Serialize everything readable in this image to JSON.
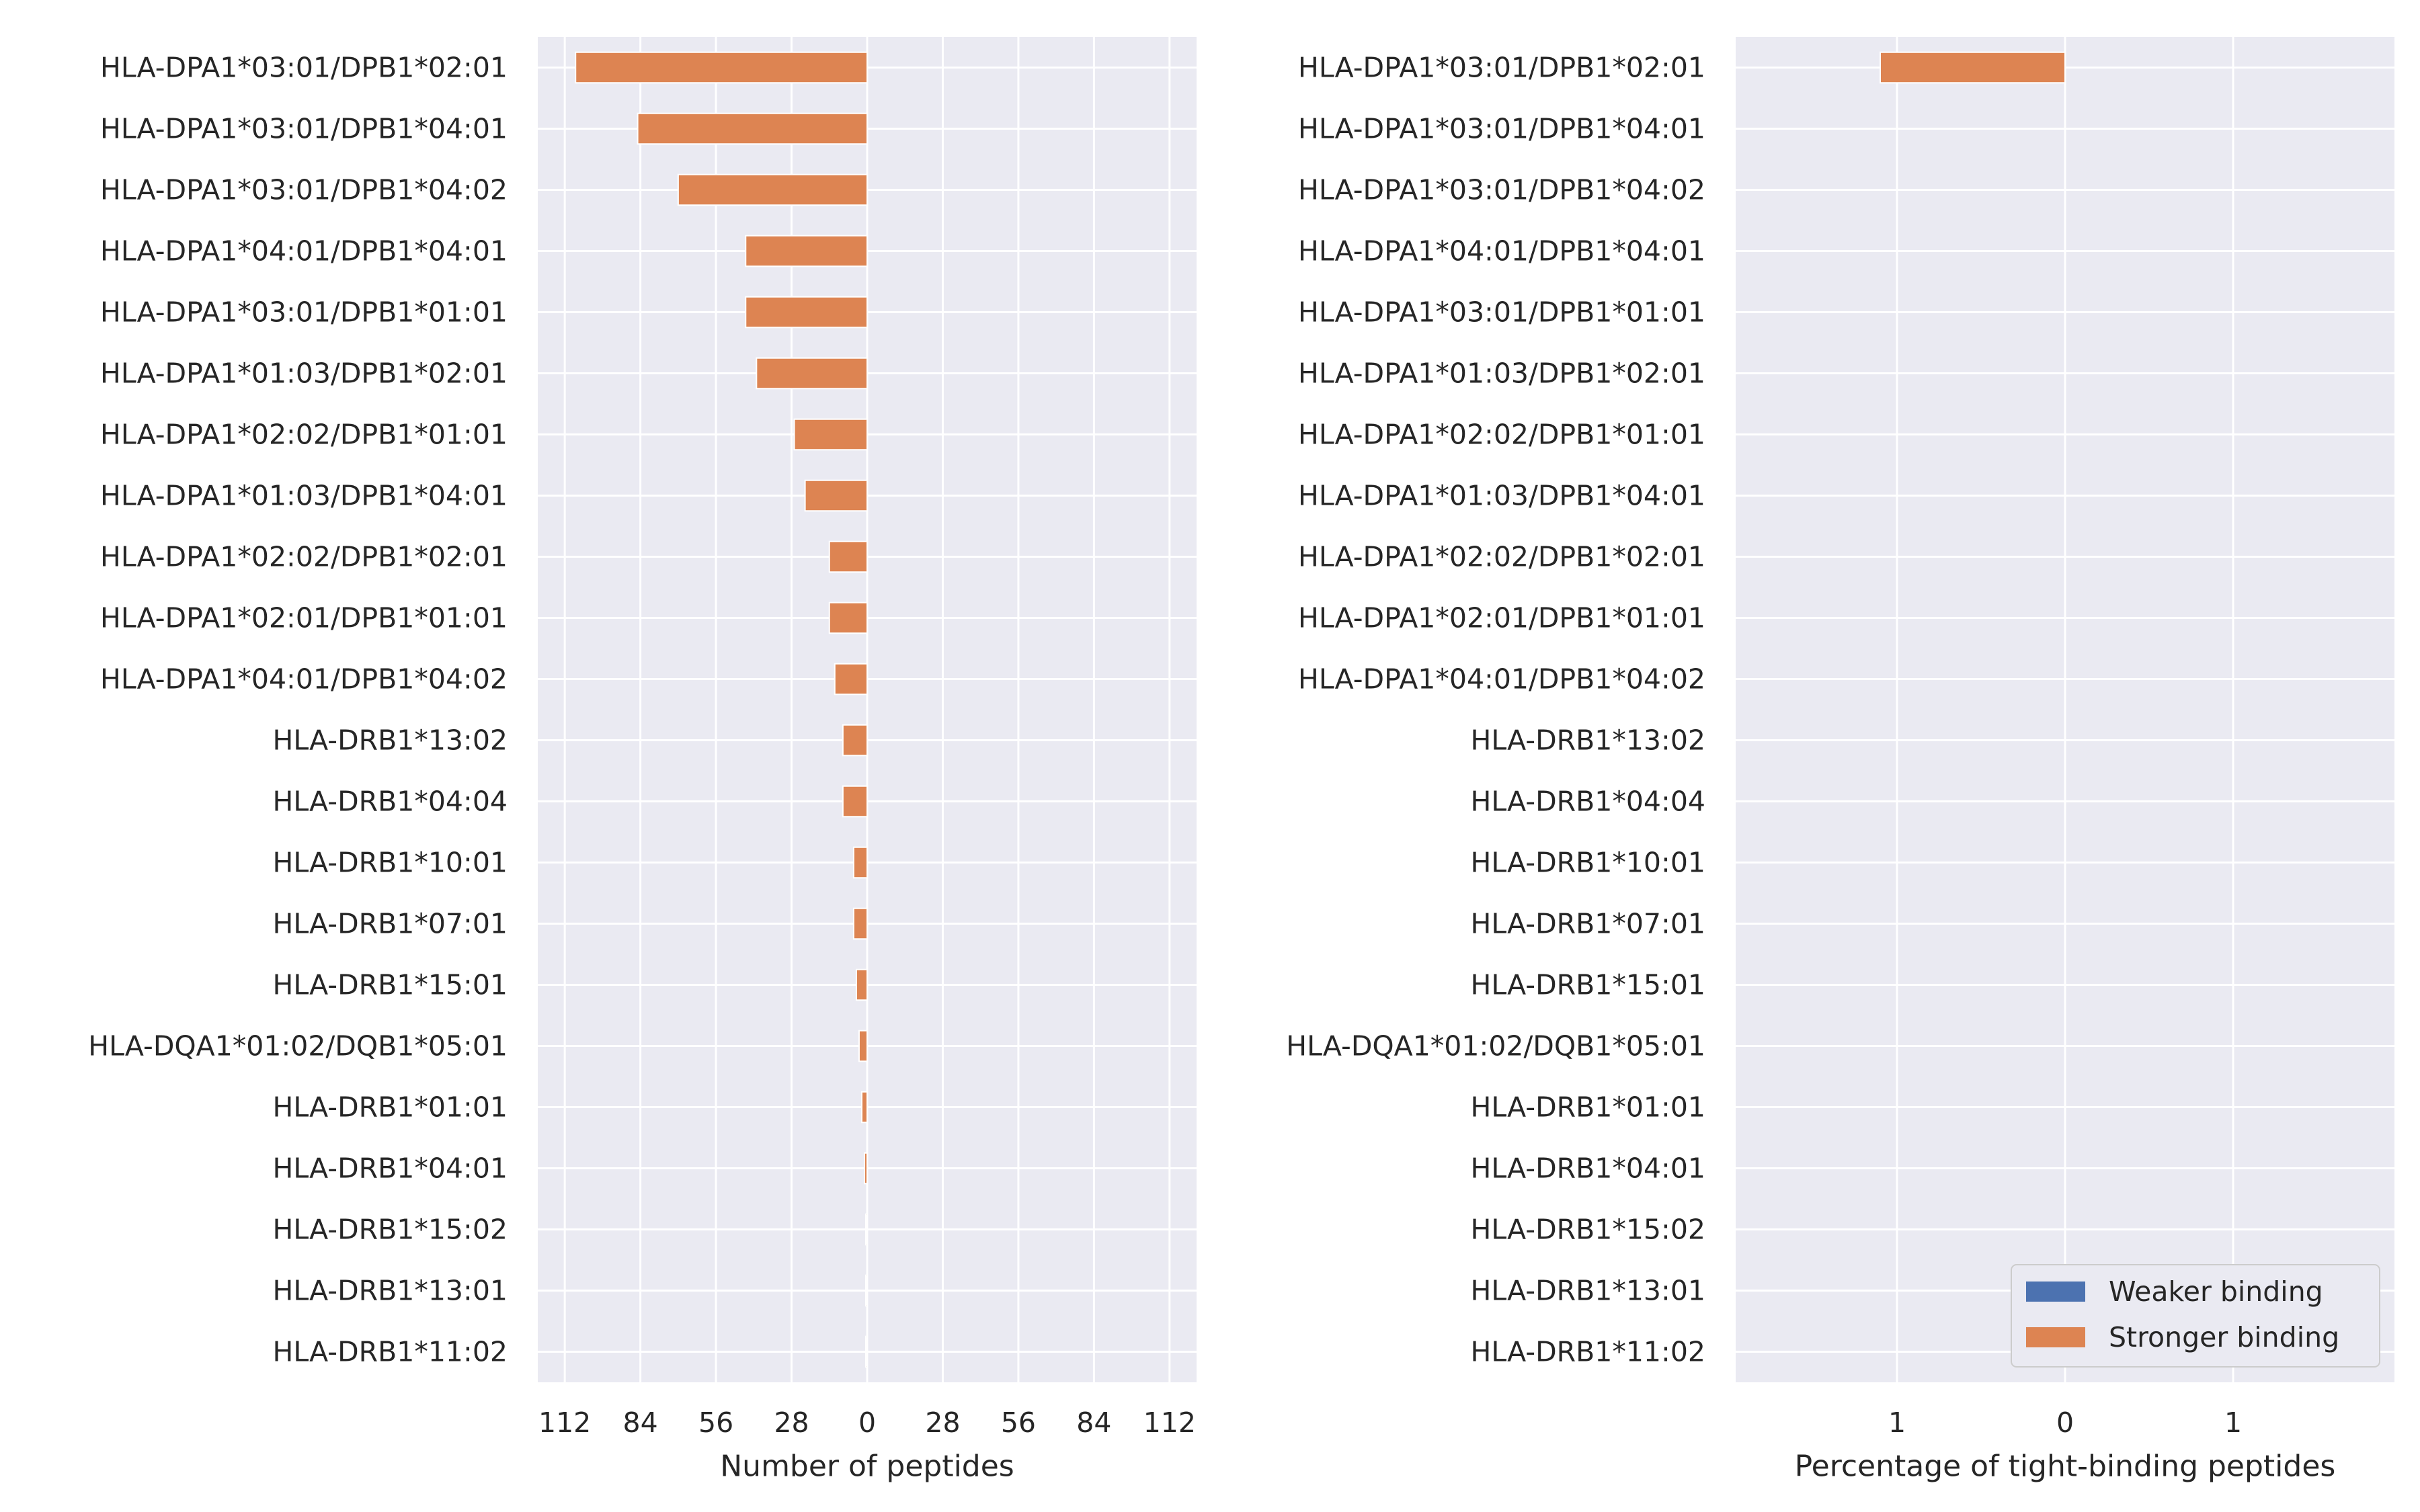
{
  "colors": {
    "panel_bg": "#EAEAF2",
    "grid": "#FFFFFF",
    "weaker": "#4C72B0",
    "stronger": "#DD8452",
    "text": "#262626"
  },
  "chart_data": [
    {
      "type": "bar",
      "orientation": "horizontal",
      "xlabel": "Number of peptides",
      "ylabel": "",
      "xlim": [
        -122,
        122
      ],
      "xticks": [
        -112,
        -84,
        -56,
        -28,
        0,
        28,
        56,
        84,
        112
      ],
      "xtick_labels": [
        "112",
        "84",
        "56",
        "28",
        "0",
        "28",
        "56",
        "84",
        "112"
      ],
      "grid": true,
      "categories": [
        "HLA-DPA1*03:01/DPB1*02:01",
        "HLA-DPA1*03:01/DPB1*04:01",
        "HLA-DPA1*03:01/DPB1*04:02",
        "HLA-DPA1*04:01/DPB1*04:01",
        "HLA-DPA1*03:01/DPB1*01:01",
        "HLA-DPA1*01:03/DPB1*02:01",
        "HLA-DPA1*02:02/DPB1*01:01",
        "HLA-DPA1*01:03/DPB1*04:01",
        "HLA-DPA1*02:02/DPB1*02:01",
        "HLA-DPA1*02:01/DPB1*01:01",
        "HLA-DPA1*04:01/DPB1*04:02",
        "HLA-DRB1*13:02",
        "HLA-DRB1*04:04",
        "HLA-DRB1*10:01",
        "HLA-DRB1*07:01",
        "HLA-DRB1*15:01",
        "HLA-DQA1*01:02/DQB1*05:01",
        "HLA-DRB1*01:01",
        "HLA-DRB1*04:01",
        "HLA-DRB1*15:02",
        "HLA-DRB1*13:01",
        "HLA-DRB1*11:02"
      ],
      "series": [
        {
          "name": "Weaker binding",
          "values": [
            0,
            0,
            0,
            0,
            0,
            0,
            0,
            0,
            0,
            0,
            0,
            0,
            0,
            0,
            0,
            0,
            0,
            0,
            0,
            0,
            0,
            0
          ]
        },
        {
          "name": "Stronger binding",
          "values": [
            -108,
            -85,
            -70,
            -45,
            -45,
            -41,
            -27,
            -23,
            -14,
            -14,
            -12,
            -9,
            -9,
            -5,
            -5,
            -4,
            -3,
            -2,
            -1,
            -0.5,
            -0.5,
            -0.5
          ]
        }
      ]
    },
    {
      "type": "bar",
      "orientation": "horizontal",
      "xlabel": "Percentage of tight-binding peptides",
      "ylabel": "",
      "xlim": [
        -1.96,
        1.96
      ],
      "xticks": [
        -1,
        0,
        1
      ],
      "xtick_labels": [
        "1",
        "0",
        "1"
      ],
      "grid": true,
      "legend_position": "bottom-right",
      "categories": [
        "HLA-DPA1*03:01/DPB1*02:01",
        "HLA-DPA1*03:01/DPB1*04:01",
        "HLA-DPA1*03:01/DPB1*04:02",
        "HLA-DPA1*04:01/DPB1*04:01",
        "HLA-DPA1*03:01/DPB1*01:01",
        "HLA-DPA1*01:03/DPB1*02:01",
        "HLA-DPA1*02:02/DPB1*01:01",
        "HLA-DPA1*01:03/DPB1*04:01",
        "HLA-DPA1*02:02/DPB1*02:01",
        "HLA-DPA1*02:01/DPB1*01:01",
        "HLA-DPA1*04:01/DPB1*04:02",
        "HLA-DRB1*13:02",
        "HLA-DRB1*04:04",
        "HLA-DRB1*10:01",
        "HLA-DRB1*07:01",
        "HLA-DRB1*15:01",
        "HLA-DQA1*01:02/DQB1*05:01",
        "HLA-DRB1*01:01",
        "HLA-DRB1*04:01",
        "HLA-DRB1*15:02",
        "HLA-DRB1*13:01",
        "HLA-DRB1*11:02"
      ],
      "series": [
        {
          "name": "Weaker binding",
          "values": [
            0,
            0,
            0,
            0,
            0,
            0,
            0,
            0,
            0,
            0,
            0,
            0,
            0,
            0,
            0,
            0,
            0,
            0,
            0,
            0,
            0,
            0
          ]
        },
        {
          "name": "Stronger binding",
          "values": [
            -1.1,
            0,
            0,
            0,
            0,
            0,
            0,
            0,
            0,
            0,
            0,
            0,
            0,
            0,
            0,
            0,
            0,
            0,
            0,
            0,
            0,
            0
          ]
        }
      ]
    }
  ]
}
